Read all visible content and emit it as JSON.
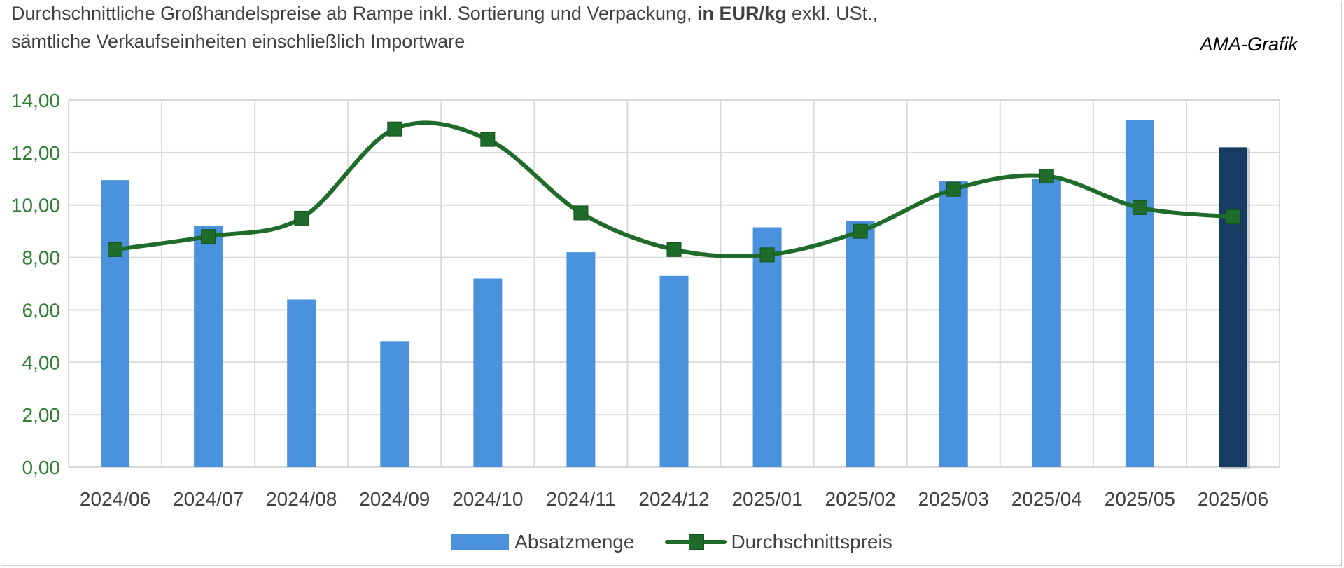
{
  "title": {
    "line1_prefix": "Durchschnittliche Großhandelspreise ab Rampe inkl. Sortierung und Verpackung, ",
    "line1_bold": "in EUR/kg",
    "line1_suffix": " exkl. USt.,",
    "line2": "sämtliche Verkaufseinheiten einschließlich Importware"
  },
  "credit": "AMA-Grafik",
  "colors": {
    "bar": "#4a92dc",
    "bar_highlight": "#173c61",
    "line": "#1e6b2a",
    "y_tick_text": "#2e7d32",
    "x_tick_text": "#404040",
    "grid": "#d9d9d9"
  },
  "chart_data": {
    "type": "bar",
    "categories": [
      "2024/06",
      "2024/07",
      "2024/08",
      "2024/09",
      "2024/10",
      "2024/11",
      "2024/12",
      "2025/01",
      "2025/02",
      "2025/03",
      "2025/04",
      "2025/05",
      "2025/06"
    ],
    "y_ticks": [
      "0,00",
      "2,00",
      "4,00",
      "6,00",
      "8,00",
      "10,00",
      "12,00",
      "14,00"
    ],
    "ylim": [
      0,
      14
    ],
    "grid": true,
    "legend_position": "bottom",
    "highlight_last_bar": true,
    "series": [
      {
        "name": "Absatzmenge",
        "kind": "bar",
        "values": [
          10.95,
          9.2,
          6.4,
          4.8,
          7.2,
          8.2,
          7.3,
          9.15,
          9.4,
          10.9,
          11.0,
          13.25,
          12.2
        ]
      },
      {
        "name": "Durchschnittspreis",
        "kind": "line",
        "smooth": true,
        "marker": "square",
        "values": [
          8.3,
          8.8,
          9.5,
          12.9,
          12.5,
          9.7,
          8.3,
          8.1,
          9.0,
          10.6,
          11.1,
          9.9,
          9.55
        ]
      }
    ]
  }
}
